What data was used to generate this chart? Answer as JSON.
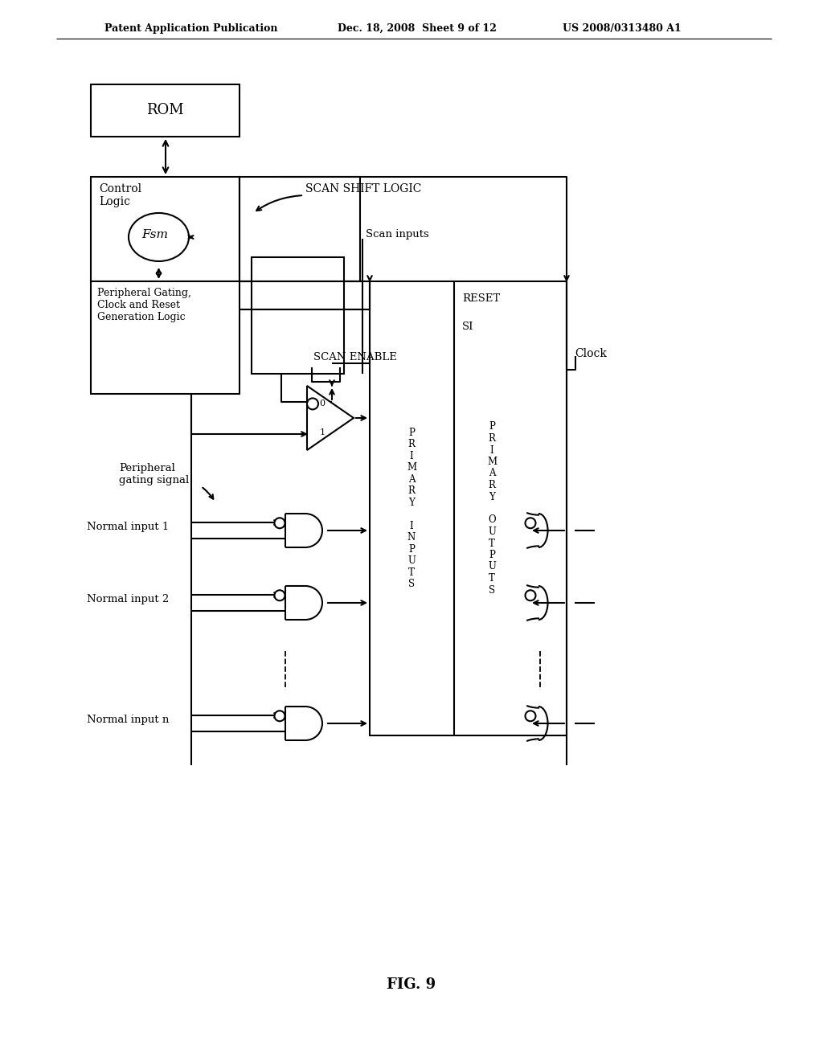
{
  "bg_color": "#ffffff",
  "lc": "#000000",
  "header_left": "Patent Application Publication",
  "header_mid": "Dec. 18, 2008  Sheet 9 of 12",
  "header_right": "US 2008/0313480 A1",
  "fig_label": "FIG. 9",
  "rom_label": "ROM",
  "control_logic_label": "Control\nLogic",
  "fsm_label": "Fsm",
  "pg_label": "Peripheral Gating,\nClock and Reset\nGeneration Logic",
  "scan_shift_logic": "SCAN SHIFT LOGIC",
  "scan_inputs": "Scan inputs",
  "scan_enable": "SCAN ENABLE",
  "clock_label": "Clock",
  "reset_label": "RESET",
  "si_label": "SI",
  "pg_signal": "Peripheral\ngating signal",
  "ni1": "Normal input 1",
  "ni2": "Normal input 2",
  "nin": "Normal input n",
  "pi_text": "P\nR\nI\nM\nA\nR\nY\n \nI\nN\nP\nU\nT\nS",
  "po_text": "P\nR\nI\nM\nA\nR\nY\n \nO\nU\nT\nP\nU\nT\nS",
  "mux_0": "0",
  "mux_1": "1"
}
